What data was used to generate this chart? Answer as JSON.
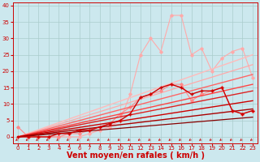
{
  "xlabel": "Vent moyen/en rafales ( km/h )",
  "xlim": [
    -0.5,
    23.5
  ],
  "ylim": [
    -2,
    41
  ],
  "yticks": [
    0,
    5,
    10,
    15,
    20,
    25,
    30,
    35,
    40
  ],
  "xticks": [
    0,
    1,
    2,
    3,
    4,
    5,
    6,
    7,
    8,
    9,
    10,
    11,
    12,
    13,
    14,
    15,
    16,
    17,
    18,
    19,
    20,
    21,
    22,
    23
  ],
  "bg_color": "#cce8ee",
  "grid_color": "#aacccc",
  "series": [
    {
      "x": [
        0,
        1,
        2,
        3,
        4,
        5,
        6,
        7,
        8,
        9,
        10,
        11,
        12,
        13,
        14,
        15,
        16,
        17,
        18,
        19,
        20,
        21,
        22,
        23
      ],
      "y": [
        0,
        0,
        0,
        0,
        0,
        0,
        0,
        1,
        2,
        3,
        5,
        13,
        25,
        30,
        26,
        37,
        37,
        25,
        27,
        20,
        24,
        26,
        27,
        18
      ],
      "color": "#ffaaaa",
      "lw": 0.8,
      "marker": "D",
      "ms": 1.8,
      "zorder": 2
    },
    {
      "x": [
        0,
        1,
        2,
        3,
        4,
        5,
        6,
        7,
        8,
        9,
        10,
        11,
        12,
        13,
        14,
        15,
        16,
        17,
        18,
        19,
        20,
        21,
        22,
        23
      ],
      "y": [
        3,
        0,
        0,
        0,
        0,
        1,
        1,
        2,
        3,
        4,
        7,
        9,
        12,
        13,
        14,
        16,
        16,
        11,
        13,
        14,
        15,
        8,
        7,
        8
      ],
      "color": "#ff8888",
      "lw": 0.8,
      "marker": "D",
      "ms": 1.8,
      "zorder": 3
    },
    {
      "x": [
        0,
        1,
        2,
        3,
        4,
        5,
        6,
        7,
        8,
        9,
        10,
        11,
        12,
        13,
        14,
        15,
        16,
        17,
        18,
        19,
        20,
        21,
        22,
        23
      ],
      "y": [
        0,
        0,
        0,
        0,
        1,
        1,
        2,
        2,
        3,
        4,
        5,
        7,
        12,
        13,
        15,
        16,
        15,
        13,
        14,
        14,
        15,
        8,
        7,
        8
      ],
      "color": "#cc0000",
      "lw": 1.0,
      "marker": "+",
      "ms": 3,
      "zorder": 5
    },
    {
      "x": [
        0,
        23
      ],
      "y": [
        0,
        25
      ],
      "color": "#ffbbbb",
      "lw": 1.0,
      "marker": null,
      "ms": 0,
      "zorder": 2
    },
    {
      "x": [
        0,
        23
      ],
      "y": [
        0,
        22
      ],
      "color": "#ffaaaa",
      "lw": 0.9,
      "marker": null,
      "ms": 0,
      "zorder": 2
    },
    {
      "x": [
        0,
        23
      ],
      "y": [
        0,
        19
      ],
      "color": "#ff6666",
      "lw": 1.0,
      "marker": null,
      "ms": 0,
      "zorder": 3
    },
    {
      "x": [
        0,
        23
      ],
      "y": [
        0,
        16
      ],
      "color": "#ff4444",
      "lw": 1.0,
      "marker": null,
      "ms": 0,
      "zorder": 3
    },
    {
      "x": [
        0,
        23
      ],
      "y": [
        0,
        14
      ],
      "color": "#dd2222",
      "lw": 1.0,
      "marker": null,
      "ms": 0,
      "zorder": 4
    },
    {
      "x": [
        0,
        23
      ],
      "y": [
        0,
        11
      ],
      "color": "#cc0000",
      "lw": 1.0,
      "marker": null,
      "ms": 0,
      "zorder": 4
    },
    {
      "x": [
        0,
        23
      ],
      "y": [
        0,
        8.5
      ],
      "color": "#aa0000",
      "lw": 1.0,
      "marker": null,
      "ms": 0,
      "zorder": 4
    },
    {
      "x": [
        0,
        23
      ],
      "y": [
        0,
        6
      ],
      "color": "#880000",
      "lw": 0.9,
      "marker": null,
      "ms": 0,
      "zorder": 4
    }
  ],
  "arrow_color": "#cc0000",
  "xlabel_color": "#cc0000",
  "xlabel_fontsize": 7,
  "tick_fontsize": 5,
  "tick_color": "#cc0000"
}
